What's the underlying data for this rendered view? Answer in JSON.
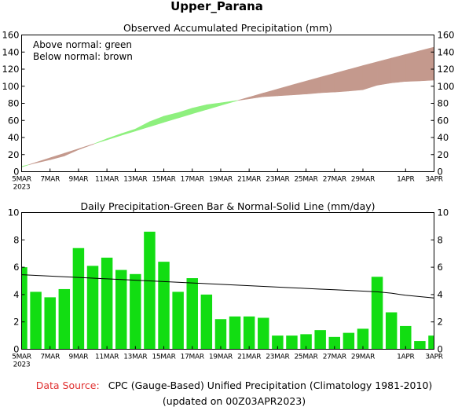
{
  "page": {
    "title": "Upper_Parana"
  },
  "footer": {
    "source_label": "Data Source:",
    "source_text": "CPC (Gauge-Based) Unified Precipitation (Climatology 1981-2010)",
    "updated": "(updated on 00Z03APR2023)"
  },
  "colors": {
    "above_normal": "#8ef07e",
    "below_normal": "#c4998d",
    "bar": "#12dd12",
    "normal_line": "#000000",
    "source_label": "#e03030"
  },
  "chart_data": [
    {
      "type": "area",
      "title": "Observed Accumulated Precipitation (mm)",
      "legend": [
        "Above normal: green",
        "Below normal: brown"
      ],
      "legend_placement": "top-left",
      "x": [
        "5MAR",
        "6MAR",
        "7MAR",
        "8MAR",
        "9MAR",
        "10MAR",
        "11MAR",
        "12MAR",
        "13MAR",
        "14MAR",
        "15MAR",
        "16MAR",
        "17MAR",
        "18MAR",
        "19MAR",
        "20MAR",
        "21MAR",
        "22MAR",
        "23MAR",
        "24MAR",
        "25MAR",
        "26MAR",
        "27MAR",
        "28MAR",
        "29MAR",
        "30MAR",
        "31MAR",
        "1APR",
        "2APR",
        "3APR"
      ],
      "x_tick_labels": [
        "5MAR\n2023",
        "7MAR",
        "9MAR",
        "11MAR",
        "13MAR",
        "15MAR",
        "17MAR",
        "19MAR",
        "21MAR",
        "23MAR",
        "25MAR",
        "27MAR",
        "29MAR",
        "1APR",
        "3APR"
      ],
      "ylim": [
        0,
        160
      ],
      "y_ticks": [
        0,
        20,
        40,
        60,
        80,
        100,
        120,
        140,
        160
      ],
      "series": [
        {
          "name": "Observed",
          "values": [
            6.0,
            10.2,
            14.0,
            18.4,
            25.8,
            31.9,
            38.6,
            44.4,
            49.9,
            58.5,
            64.9,
            69.1,
            74.3,
            78.3,
            80.5,
            82.9,
            85.3,
            87.8,
            88.8,
            89.8,
            90.9,
            92.3,
            93.2,
            94.4,
            95.9,
            101.2,
            103.9,
            105.6,
            106.2,
            107.2
          ]
        },
        {
          "name": "Normal",
          "values": [
            5.4,
            10.8,
            16.2,
            21.5,
            26.8,
            32.1,
            37.3,
            42.5,
            47.6,
            52.7,
            57.8,
            62.8,
            67.8,
            72.7,
            77.6,
            82.4,
            87.2,
            92.0,
            96.7,
            101.4,
            106.0,
            110.6,
            115.1,
            119.6,
            124.1,
            128.5,
            132.9,
            137.2,
            141.5,
            145.7
          ]
        }
      ]
    },
    {
      "type": "bar",
      "title": "Daily Precipitation-Green Bar & Normal-Solid Line (mm/day)",
      "x": [
        "5MAR",
        "6MAR",
        "7MAR",
        "8MAR",
        "9MAR",
        "10MAR",
        "11MAR",
        "12MAR",
        "13MAR",
        "14MAR",
        "15MAR",
        "16MAR",
        "17MAR",
        "18MAR",
        "19MAR",
        "20MAR",
        "21MAR",
        "22MAR",
        "23MAR",
        "24MAR",
        "25MAR",
        "26MAR",
        "27MAR",
        "28MAR",
        "29MAR",
        "30MAR",
        "31MAR",
        "1APR",
        "2APR",
        "3APR"
      ],
      "x_tick_labels": [
        "5MAR\n2023",
        "7MAR",
        "9MAR",
        "11MAR",
        "13MAR",
        "15MAR",
        "17MAR",
        "19MAR",
        "21MAR",
        "23MAR",
        "25MAR",
        "27MAR",
        "29MAR",
        "1APR",
        "3APR"
      ],
      "ylim": [
        0,
        10
      ],
      "y_ticks": [
        0,
        2,
        4,
        6,
        8,
        10
      ],
      "series": [
        {
          "name": "Daily Precipitation",
          "values": [
            6.0,
            4.2,
            3.8,
            4.4,
            7.4,
            6.1,
            6.7,
            5.8,
            5.5,
            8.6,
            6.4,
            4.2,
            5.2,
            4.0,
            2.2,
            2.4,
            2.4,
            2.3,
            1.0,
            1.0,
            1.1,
            1.4,
            0.9,
            1.2,
            1.5,
            5.3,
            2.7,
            1.7,
            0.6,
            1.0
          ]
        },
        {
          "name": "Normal",
          "values": [
            5.45,
            5.4,
            5.35,
            5.3,
            5.25,
            5.2,
            5.15,
            5.1,
            5.05,
            5.0,
            4.95,
            4.9,
            4.85,
            4.8,
            4.75,
            4.7,
            4.65,
            4.6,
            4.55,
            4.5,
            4.45,
            4.4,
            4.35,
            4.3,
            4.25,
            4.2,
            4.1,
            3.95,
            3.85,
            3.75
          ]
        }
      ]
    }
  ]
}
